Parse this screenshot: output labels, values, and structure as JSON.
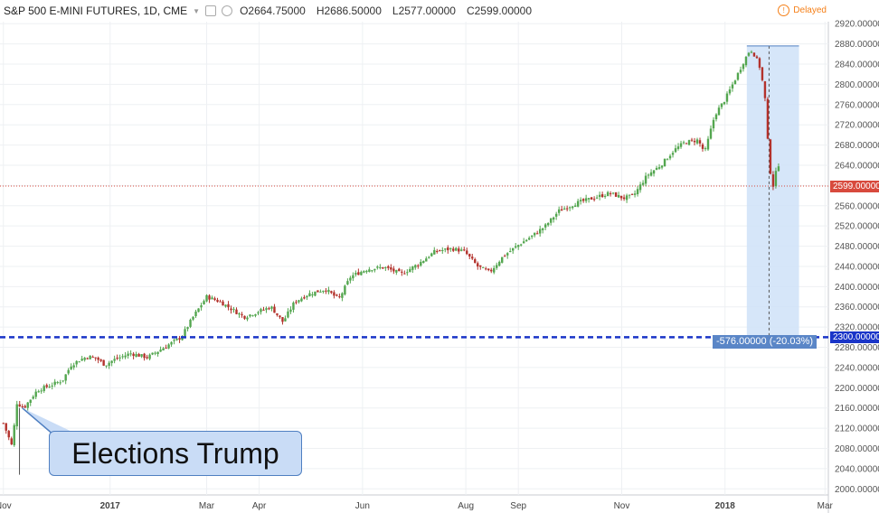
{
  "header": {
    "symbol": "S&P 500 E-MINI FUTURES, 1D, CME",
    "open": "O2664.75000",
    "high": "H2686.50000",
    "low": "L2577.00000",
    "close": "C2599.00000",
    "status": "Delayed"
  },
  "colors": {
    "up": "#53a64f",
    "down": "#b3322c",
    "grid": "#eef0f3",
    "line_2300": "#1a35c8",
    "last_price_tag": "#d84a3d",
    "level_tag": "#1a35c8",
    "measure_fill": "#cfe2f8",
    "callout_bg": "#c9dcf6"
  },
  "annotation": {
    "text": "Elections Trump"
  },
  "measure": {
    "label": "-576.00000 (-20.03%)"
  },
  "price_tags": {
    "last": "2599.00000",
    "level": "2300.00000"
  },
  "chart_data": {
    "type": "candlestick",
    "title": "S&P 500 E-MINI FUTURES, 1D, CME",
    "y_axis_ticks": [
      "2000.00000",
      "2040.00000",
      "2080.00000",
      "2120.00000",
      "2160.00000",
      "2200.00000",
      "2240.00000",
      "2280.00000",
      "2320.00000",
      "2360.00000",
      "2400.00000",
      "2440.00000",
      "2480.00000",
      "2520.00000",
      "2560.00000",
      "2600.00000",
      "2640.00000",
      "2680.00000",
      "2720.00000",
      "2760.00000",
      "2800.00000",
      "2840.00000",
      "2880.00000",
      "2920.00000"
    ],
    "ylim": [
      1988,
      2924
    ],
    "x_axis_labels": [
      {
        "label": "Nov",
        "t": 0
      },
      {
        "label": "2017",
        "t": 63
      },
      {
        "label": "Mar",
        "t": 120
      },
      {
        "label": "Apr",
        "t": 151
      },
      {
        "label": "Jun",
        "t": 212
      },
      {
        "label": "Aug",
        "t": 273
      },
      {
        "label": "Sep",
        "t": 304
      },
      {
        "label": "Nov",
        "t": 365
      },
      {
        "label": "2018",
        "t": 426
      },
      {
        "label": "Mar",
        "t": 485
      }
    ],
    "xlim": [
      -2,
      487
    ],
    "horizontal_line": {
      "value": 2300,
      "label": "2300.00000",
      "style": "dashed"
    },
    "last_price": 2599,
    "measure": {
      "from_value": 2876,
      "to_value": 2300,
      "change": -576,
      "percent": -20.03
    },
    "series": [
      {
        "t": 0,
        "value": 2130
      },
      {
        "t": 5,
        "value": 2085
      },
      {
        "t": 8,
        "value": 2170
      },
      {
        "t": 12,
        "value": 2160
      },
      {
        "t": 20,
        "value": 2195
      },
      {
        "t": 28,
        "value": 2205
      },
      {
        "t": 35,
        "value": 2215
      },
      {
        "t": 40,
        "value": 2245
      },
      {
        "t": 45,
        "value": 2255
      },
      {
        "t": 50,
        "value": 2262
      },
      {
        "t": 55,
        "value": 2258
      },
      {
        "t": 60,
        "value": 2245
      },
      {
        "t": 65,
        "value": 2255
      },
      {
        "t": 75,
        "value": 2268
      },
      {
        "t": 85,
        "value": 2260
      },
      {
        "t": 95,
        "value": 2280
      },
      {
        "t": 105,
        "value": 2300
      },
      {
        "t": 112,
        "value": 2340
      },
      {
        "t": 120,
        "value": 2380
      },
      {
        "t": 128,
        "value": 2370
      },
      {
        "t": 135,
        "value": 2355
      },
      {
        "t": 142,
        "value": 2340
      },
      {
        "t": 150,
        "value": 2350
      },
      {
        "t": 158,
        "value": 2360
      },
      {
        "t": 165,
        "value": 2330
      },
      {
        "t": 172,
        "value": 2370
      },
      {
        "t": 180,
        "value": 2385
      },
      {
        "t": 190,
        "value": 2395
      },
      {
        "t": 198,
        "value": 2375
      },
      {
        "t": 205,
        "value": 2420
      },
      {
        "t": 215,
        "value": 2435
      },
      {
        "t": 225,
        "value": 2438
      },
      {
        "t": 235,
        "value": 2425
      },
      {
        "t": 245,
        "value": 2445
      },
      {
        "t": 255,
        "value": 2470
      },
      {
        "t": 265,
        "value": 2475
      },
      {
        "t": 272,
        "value": 2470
      },
      {
        "t": 280,
        "value": 2440
      },
      {
        "t": 287,
        "value": 2428
      },
      {
        "t": 295,
        "value": 2460
      },
      {
        "t": 303,
        "value": 2480
      },
      {
        "t": 312,
        "value": 2500
      },
      {
        "t": 320,
        "value": 2520
      },
      {
        "t": 328,
        "value": 2550
      },
      {
        "t": 338,
        "value": 2565
      },
      {
        "t": 348,
        "value": 2575
      },
      {
        "t": 358,
        "value": 2585
      },
      {
        "t": 366,
        "value": 2575
      },
      {
        "t": 372,
        "value": 2580
      },
      {
        "t": 380,
        "value": 2620
      },
      {
        "t": 388,
        "value": 2640
      },
      {
        "t": 396,
        "value": 2670
      },
      {
        "t": 402,
        "value": 2685
      },
      {
        "t": 410,
        "value": 2690
      },
      {
        "t": 414,
        "value": 2665
      },
      {
        "t": 420,
        "value": 2740
      },
      {
        "t": 426,
        "value": 2770
      },
      {
        "t": 432,
        "value": 2810
      },
      {
        "t": 437,
        "value": 2845
      },
      {
        "t": 441,
        "value": 2870
      },
      {
        "t": 444,
        "value": 2855
      },
      {
        "t": 447,
        "value": 2830
      },
      {
        "t": 450,
        "value": 2762
      },
      {
        "t": 452,
        "value": 2640
      },
      {
        "t": 455,
        "value": 2590
      },
      {
        "t": 457,
        "value": 2660
      },
      {
        "t": 459,
        "value": 2599
      }
    ]
  }
}
